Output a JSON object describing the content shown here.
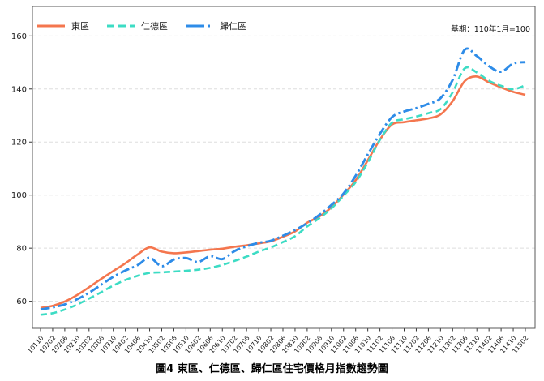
{
  "chart_data": {
    "type": "line",
    "title": "圖4 東區、仁德區、歸仁區住宅價格月指數趨勢圖",
    "base_note": "基期：110年1月=100",
    "xlabel": "",
    "ylabel": "",
    "grid": true,
    "legend_position": "top-left-inside",
    "ylim": [
      49.8,
      171.1
    ],
    "yticks": [
      60,
      80,
      100,
      120,
      140,
      160
    ],
    "categories": [
      "10110",
      "10202",
      "10206",
      "10210",
      "10302",
      "10306",
      "10310",
      "10402",
      "10406",
      "10410",
      "10502",
      "10506",
      "10510",
      "10602",
      "10606",
      "10610",
      "10702",
      "10706",
      "10710",
      "10802",
      "10806",
      "10810",
      "10902",
      "10906",
      "10910",
      "11002",
      "11006",
      "11010",
      "11102",
      "11106",
      "11110",
      "11202",
      "11206",
      "11210",
      "11302",
      "11306",
      "11310",
      "11402",
      "11406",
      "11410",
      "11502"
    ],
    "series": [
      {
        "name": "東區",
        "color": "#F4764E",
        "dash": "solid",
        "values": [
          57.5,
          58.3,
          59.9,
          62.3,
          65.3,
          68.4,
          71.4,
          74.3,
          77.6,
          80.3,
          78.7,
          78.1,
          78.4,
          78.9,
          79.4,
          79.8,
          80.5,
          81.1,
          81.8,
          82.6,
          84.3,
          86.3,
          89.6,
          91.9,
          95.4,
          100.2,
          105.6,
          113.1,
          120.9,
          126.6,
          127.5,
          128.2,
          128.9,
          130.4,
          135.4,
          143.0,
          144.7,
          142.5,
          140.6,
          138.9,
          137.8
        ]
      },
      {
        "name": "仁德區",
        "color": "#3CDCC4",
        "dash": "dashed",
        "values": [
          54.9,
          55.5,
          56.9,
          58.7,
          61.0,
          63.4,
          65.9,
          68.0,
          69.6,
          70.7,
          70.9,
          71.2,
          71.5,
          71.9,
          72.6,
          73.7,
          75.2,
          76.8,
          78.7,
          80.3,
          82.3,
          84.5,
          88.2,
          91.3,
          95.0,
          99.8,
          104.9,
          112.3,
          120.8,
          127.3,
          128.6,
          129.6,
          130.9,
          132.4,
          138.7,
          147.8,
          146.2,
          143.1,
          141.2,
          139.9,
          141.4
        ]
      },
      {
        "name": "歸仁區",
        "color": "#2E8CE8",
        "dash": "dashdot",
        "values": [
          56.9,
          57.7,
          58.8,
          60.7,
          63.2,
          66.2,
          69.2,
          71.6,
          73.6,
          76.4,
          73.2,
          75.7,
          76.3,
          74.8,
          77.0,
          75.9,
          78.9,
          80.7,
          82.0,
          82.8,
          84.7,
          86.8,
          89.4,
          92.5,
          96.3,
          100.6,
          107.3,
          115.3,
          123.1,
          129.4,
          131.5,
          132.8,
          134.4,
          136.5,
          143.4,
          154.8,
          152.4,
          148.6,
          146.5,
          149.6,
          150.1
        ]
      }
    ],
    "axis_colors": {
      "spine": "#595959",
      "tick": "#333333",
      "gridline": "#dedede",
      "tick_label": "#1a1a1a"
    }
  }
}
